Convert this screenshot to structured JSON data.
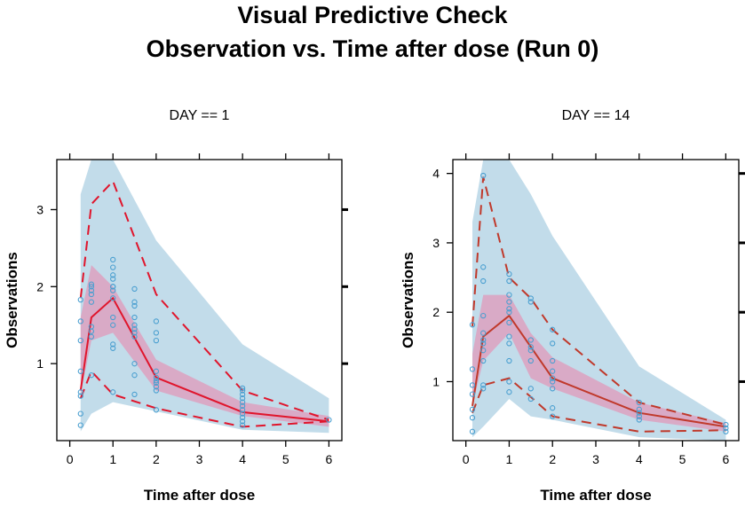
{
  "title_line1": "Visual Predictive Check",
  "title_line2": "Observation  vs. Time after dose (Run 0)",
  "colors": {
    "pi_band": "#c2dcea",
    "median_band": "#d9aac6",
    "median_line_panel1": "#e0152c",
    "median_line_panel2": "#c0392b",
    "points": "#4a9fd0",
    "frame": "#000000"
  },
  "chart_data": [
    {
      "type": "line",
      "panel_label": "DAY == 1",
      "xlabel": "Time after dose",
      "ylabel": "Observations",
      "xlim": [
        -0.3,
        6.3
      ],
      "ylim": [
        0.0,
        3.65
      ],
      "xticks": [
        0,
        1,
        2,
        3,
        4,
        5,
        6
      ],
      "yticks": [
        1,
        2,
        3
      ],
      "line_color_key": "median_line_panel1",
      "pi_band": {
        "x": [
          0.25,
          0.5,
          1,
          2,
          4,
          6
        ],
        "lower": [
          0.12,
          0.35,
          0.5,
          0.38,
          0.14,
          0.1
        ],
        "upper": [
          3.2,
          3.65,
          3.65,
          2.6,
          1.25,
          0.55
        ]
      },
      "median_band": {
        "x": [
          0.25,
          0.5,
          1,
          2,
          4,
          6
        ],
        "lower": [
          0.6,
          1.3,
          1.4,
          0.65,
          0.32,
          0.18
        ],
        "upper": [
          1.6,
          2.28,
          2.0,
          1.05,
          0.5,
          0.32
        ]
      },
      "series": [
        {
          "role": "observed_median",
          "style": "solid",
          "x": [
            0.25,
            0.5,
            1,
            2,
            4,
            6
          ],
          "values": [
            0.65,
            1.6,
            1.85,
            0.82,
            0.37,
            0.25
          ]
        },
        {
          "role": "observed_upper",
          "style": "dashed",
          "x": [
            0.25,
            0.5,
            1,
            2,
            4,
            6
          ],
          "values": [
            1.85,
            3.07,
            3.37,
            1.9,
            0.65,
            0.27
          ]
        },
        {
          "role": "observed_lower",
          "style": "dashed",
          "x": [
            0.25,
            0.5,
            1,
            2,
            4,
            6
          ],
          "values": [
            0.55,
            0.9,
            0.6,
            0.42,
            0.18,
            0.25
          ]
        }
      ],
      "points": {
        "x": [
          0.25,
          0.25,
          0.25,
          0.25,
          0.25,
          0.25,
          0.25,
          0.25,
          0.5,
          0.5,
          0.5,
          0.5,
          0.5,
          0.5,
          0.5,
          0.5,
          0.5,
          1,
          1,
          1,
          1,
          1,
          1,
          1,
          1,
          1,
          1,
          1,
          1,
          1,
          1.5,
          1.5,
          1.5,
          1.5,
          1.5,
          1.5,
          1.5,
          1.5,
          1.5,
          1.5,
          1.5,
          2,
          2,
          2,
          2,
          2,
          2,
          2,
          2,
          2,
          2,
          4,
          4,
          4,
          4,
          4,
          4,
          4,
          4,
          4,
          4,
          4,
          6
        ],
        "y": [
          0.2,
          0.35,
          0.58,
          0.63,
          0.9,
          1.3,
          1.55,
          1.83,
          0.85,
          1.35,
          1.42,
          1.48,
          1.8,
          1.9,
          1.95,
          2.0,
          2.03,
          0.63,
          1.2,
          1.25,
          1.5,
          1.6,
          1.85,
          1.95,
          2.0,
          2.1,
          2.15,
          2.25,
          2.35,
          2.0,
          0.6,
          0.85,
          1.0,
          1.35,
          1.4,
          1.45,
          1.5,
          1.6,
          1.75,
          1.8,
          1.97,
          0.4,
          0.65,
          0.7,
          0.75,
          0.78,
          0.82,
          0.9,
          1.3,
          1.4,
          1.55,
          0.2,
          0.25,
          0.3,
          0.35,
          0.4,
          0.45,
          0.5,
          0.55,
          0.6,
          0.65,
          0.68,
          0.27
        ]
      }
    },
    {
      "type": "line",
      "panel_label": "DAY == 14",
      "xlabel": "Time after dose",
      "ylabel": "Observations",
      "xlim": [
        -0.3,
        6.3
      ],
      "ylim": [
        0.15,
        4.2
      ],
      "xticks": [
        0,
        1,
        2,
        3,
        4,
        5,
        6
      ],
      "yticks": [
        1,
        2,
        3,
        4
      ],
      "line_color_key": "median_line_panel2",
      "pi_band": {
        "x": [
          0.15,
          0.4,
          1,
          1.5,
          2,
          4,
          6
        ],
        "lower": [
          0.2,
          0.35,
          0.75,
          0.5,
          0.45,
          0.2,
          0.15
        ],
        "upper": [
          3.3,
          4.2,
          4.2,
          3.7,
          3.1,
          1.22,
          0.45
        ]
      },
      "median_band": {
        "x": [
          0.15,
          0.4,
          1,
          1.5,
          2,
          4,
          6
        ],
        "lower": [
          0.65,
          1.3,
          1.7,
          1.05,
          0.9,
          0.45,
          0.28
        ],
        "upper": [
          1.4,
          2.25,
          2.25,
          1.7,
          1.35,
          0.7,
          0.4
        ]
      },
      "series": [
        {
          "role": "observed_median",
          "style": "solid",
          "x": [
            0.15,
            0.4,
            1,
            1.5,
            2,
            4,
            6
          ],
          "values": [
            0.65,
            1.65,
            1.95,
            1.5,
            1.05,
            0.55,
            0.35
          ]
        },
        {
          "role": "observed_upper",
          "style": "dashed",
          "x": [
            0.15,
            0.4,
            1,
            1.5,
            2,
            4,
            6
          ],
          "values": [
            1.8,
            3.95,
            2.5,
            2.2,
            1.75,
            0.7,
            0.38
          ]
        },
        {
          "role": "observed_lower",
          "style": "dashed",
          "x": [
            0.15,
            0.4,
            1,
            1.5,
            2,
            4,
            6
          ],
          "values": [
            0.55,
            0.95,
            1.05,
            0.78,
            0.5,
            0.28,
            0.3
          ]
        }
      ],
      "points": {
        "x": [
          0.15,
          0.15,
          0.15,
          0.15,
          0.15,
          0.15,
          0.15,
          0.4,
          0.4,
          0.4,
          0.4,
          0.4,
          0.4,
          0.4,
          0.4,
          0.4,
          0.4,
          0.4,
          1,
          1,
          1,
          1,
          1,
          1,
          1,
          1,
          1,
          1,
          1,
          1,
          1.5,
          1.5,
          1.5,
          1.5,
          1.5,
          1.5,
          1.5,
          1.5,
          2,
          2,
          2,
          2,
          2,
          2,
          2,
          2,
          2,
          4,
          4,
          4,
          4,
          4,
          6,
          6,
          6
        ],
        "y": [
          0.28,
          0.48,
          0.6,
          0.82,
          0.95,
          1.18,
          1.82,
          0.9,
          0.95,
          1.3,
          1.45,
          1.55,
          1.6,
          1.7,
          1.95,
          2.45,
          2.65,
          3.97,
          0.85,
          1.0,
          1.3,
          1.55,
          1.65,
          1.85,
          2.0,
          2.05,
          2.15,
          2.25,
          2.45,
          2.55,
          0.75,
          0.9,
          1.3,
          1.45,
          1.5,
          1.6,
          2.15,
          2.2,
          0.5,
          0.62,
          0.9,
          1.0,
          1.05,
          1.15,
          1.3,
          1.55,
          1.75,
          0.45,
          0.5,
          0.55,
          0.6,
          0.7,
          0.28,
          0.33,
          0.38
        ]
      }
    }
  ]
}
